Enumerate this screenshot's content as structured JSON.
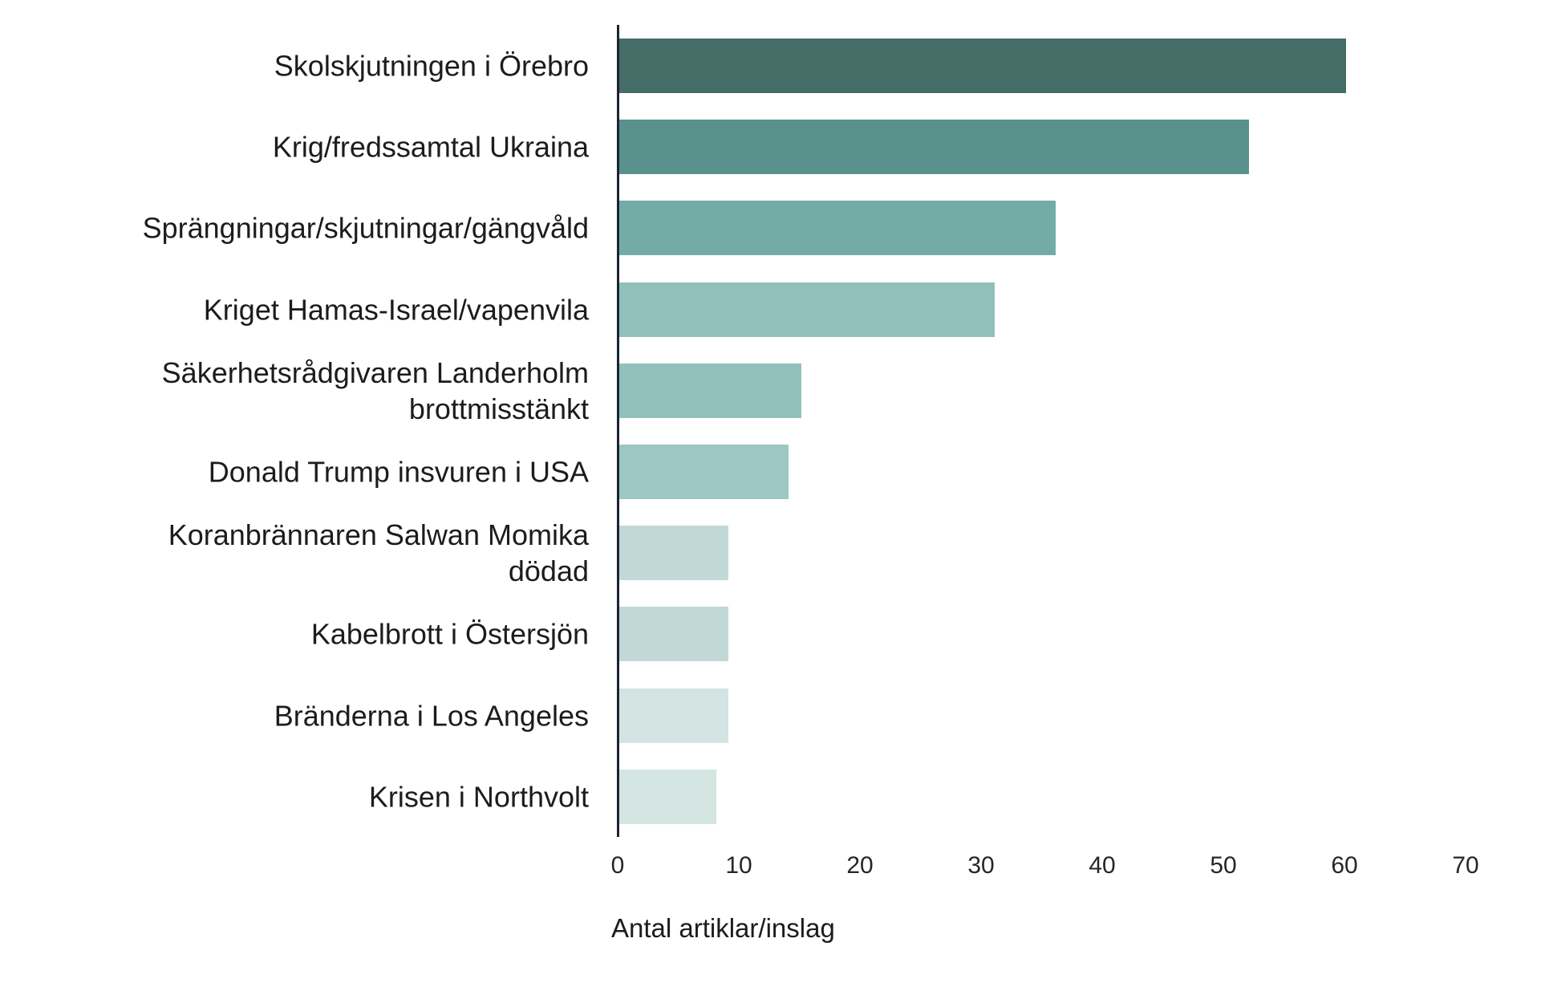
{
  "chart_data": {
    "type": "bar",
    "orientation": "horizontal",
    "title": "",
    "xlabel": "Antal artiklar/inslag",
    "ylabel": "",
    "categories": [
      "Skolskjutningen i Örebro",
      "Krig/fredssamtal Ukraina",
      "Sprängningar/skjutningar/gängvåld",
      "Kriget Hamas-Israel/vapenvila",
      "Säkerhetsrådgivaren Landerholm\nbrottmisstänkt",
      "Donald Trump insvuren i USA",
      "Koranbrännaren Salwan Momika\ndödad",
      "Kabelbrott i Östersjön",
      "Bränderna i Los Angeles",
      "Krisen i Northvolt"
    ],
    "values": [
      60,
      52,
      36,
      31,
      15,
      14,
      9,
      9,
      9,
      8
    ],
    "bar_colors": [
      "#466c68",
      "#5a918c",
      "#73aca7",
      "#92bfba",
      "#92c0bb",
      "#9cc7c2",
      "#c2d8d7",
      "#c2d8d7",
      "#d3e4e2",
      "#d4e5e2"
    ],
    "xlim": [
      0,
      70
    ],
    "xticks": [
      0,
      10,
      20,
      30,
      40,
      50,
      60,
      70
    ],
    "grid": false,
    "legend": false,
    "axis_line_color": "#1b2336",
    "label_text_color": "#1c1c1e",
    "tick_text_color": "#26262a",
    "background_color": "#ffffff"
  }
}
